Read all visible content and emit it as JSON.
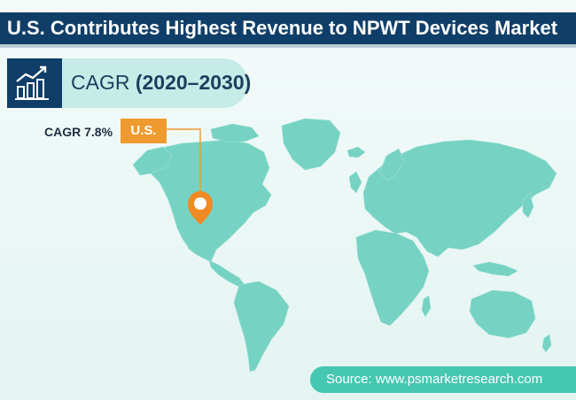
{
  "title": "U.S. Contributes Highest Revenue to NPWT Devices Market",
  "cagr_header": {
    "label": "CAGR",
    "period": "(2020–2030)"
  },
  "callout": {
    "value": "CAGR 7.8%",
    "region": "U.S."
  },
  "source": "Source: www.psmarketresearch.com",
  "colors": {
    "title_bar": "#0f3f68",
    "map_land": "#76d3c4",
    "callout_tag": "#ef9a2f",
    "source_bar": "#45c7b2"
  },
  "icons": {
    "cagr": "bar-chart-growth-icon",
    "marker": "location-pin-icon"
  }
}
